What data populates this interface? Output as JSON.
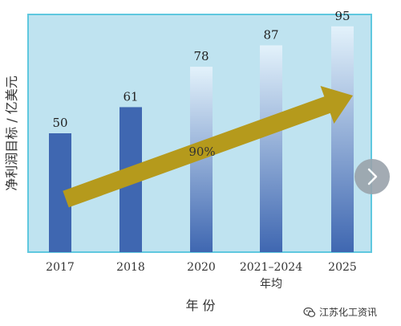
{
  "chart_data": {
    "type": "bar",
    "categories": [
      "2017",
      "2018",
      "2020",
      "2021–2024",
      "2025"
    ],
    "category_sublabels": [
      "",
      "",
      "",
      "年均",
      ""
    ],
    "values": [
      50,
      61,
      78,
      87,
      95
    ],
    "ylabel": "净利润目标 / 亿美元",
    "xlabel": "年 份",
    "ylim": [
      0,
      100
    ],
    "annotation": "90%",
    "background_color": "#bfe3f0",
    "frame_color": "#5fc8df",
    "bar_solid_color": "#3f67b1",
    "bar_gradient_top": "#e3f2fb",
    "arrow_color": "#b59a1c"
  },
  "ui": {
    "watermark_text": "江苏化工资讯",
    "next_icon": "chevron-right-icon",
    "watermark_icon": "wechat-icon"
  }
}
